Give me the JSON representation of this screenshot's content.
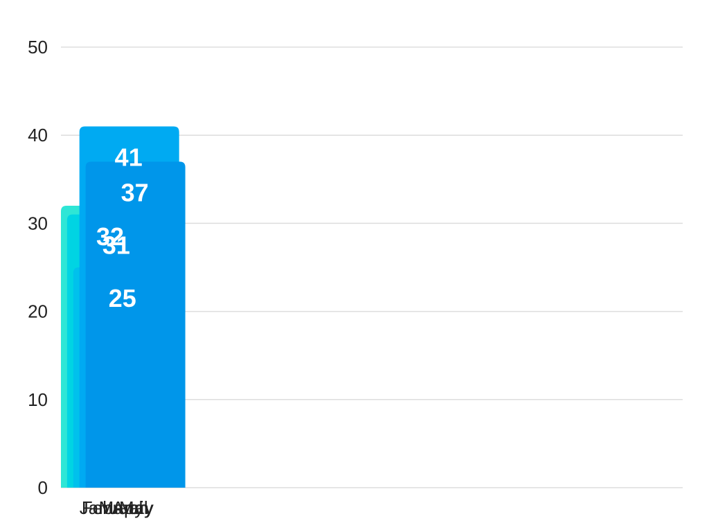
{
  "chart_data": {
    "type": "bar",
    "categories": [
      "January",
      "February",
      "March",
      "April",
      "May"
    ],
    "values": [
      32,
      31,
      25,
      41,
      37
    ],
    "data_labels": [
      "32",
      "31",
      "25",
      "41",
      "37"
    ],
    "yticks": [
      "0",
      "10",
      "20",
      "30",
      "40",
      "50"
    ],
    "ylim": [
      0,
      50
    ],
    "grid": true,
    "legend": "none",
    "colors": [
      "#2ee6d6",
      "#00d4e3",
      "#00c1ec",
      "#00aaf2",
      "#0096ea"
    ]
  }
}
